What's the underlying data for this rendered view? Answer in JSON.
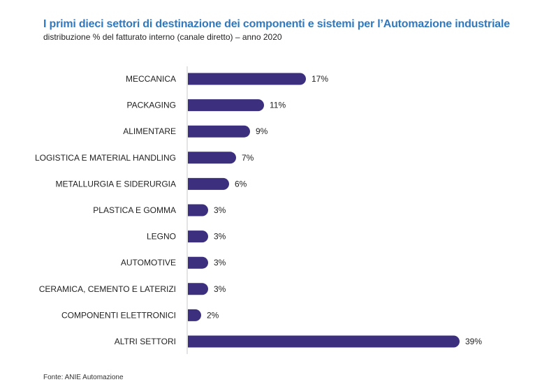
{
  "chart_data": {
    "type": "bar",
    "orientation": "horizontal",
    "title": "I primi dieci settori di destinazione dei componenti e sistemi per l’Automazione industriale",
    "subtitle": "distribuzione % del fatturato interno (canale diretto) – anno 2020",
    "categories": [
      "MECCANICA",
      "PACKAGING",
      "ALIMENTARE",
      "LOGISTICA E MATERIAL HANDLING",
      "METALLURGIA E SIDERURGIA",
      "PLASTICA E GOMMA",
      "LEGNO",
      "AUTOMOTIVE",
      "CERAMICA, CEMENTO E LATERIZI",
      "COMPONENTI ELETTRONICI",
      "ALTRI SETTORI"
    ],
    "values": [
      17,
      11,
      9,
      7,
      6,
      3,
      3,
      3,
      3,
      2,
      39
    ],
    "value_labels": [
      "17%",
      "11%",
      "9%",
      "7%",
      "6%",
      "3%",
      "3%",
      "3%",
      "3%",
      "2%",
      "39%"
    ],
    "unit": "%",
    "xlim": [
      0,
      39
    ],
    "bar_color": "#3b2f7e",
    "title_color": "#2f79c0",
    "grid": false,
    "legend": "none"
  },
  "source": "Fonte: ANIE Automazione"
}
